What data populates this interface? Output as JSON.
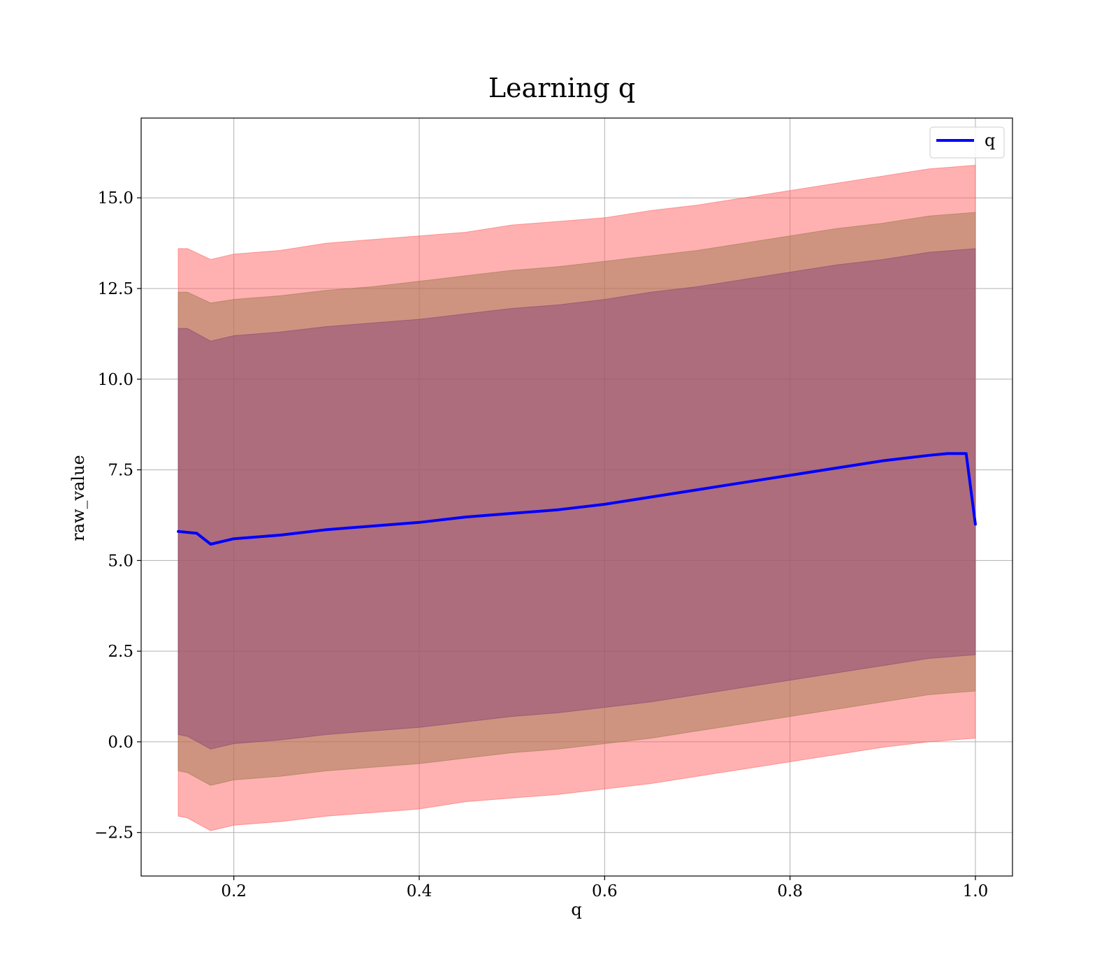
{
  "chart_data": {
    "type": "line",
    "title": "Learning q",
    "xlabel": "q",
    "ylabel": "raw_value",
    "xlim": [
      0.1,
      1.04
    ],
    "ylim": [
      -3.7,
      17.2
    ],
    "x_ticks": [
      0.2,
      0.4,
      0.6,
      0.8,
      1.0
    ],
    "x_tick_labels": [
      "0.2",
      "0.4",
      "0.6",
      "0.8",
      "1.0"
    ],
    "y_ticks": [
      -2.5,
      0.0,
      2.5,
      5.0,
      7.5,
      10.0,
      12.5,
      15.0
    ],
    "y_tick_labels": [
      "−2.5",
      "0.0",
      "2.5",
      "5.0",
      "7.5",
      "10.0",
      "12.5",
      "15.0"
    ],
    "grid": true,
    "legend_position": "top-right",
    "series": [
      {
        "name": "q",
        "color": "#0000ff",
        "x": [
          0.14,
          0.16,
          0.175,
          0.2,
          0.25,
          0.3,
          0.35,
          0.4,
          0.45,
          0.5,
          0.55,
          0.6,
          0.65,
          0.7,
          0.75,
          0.8,
          0.85,
          0.9,
          0.95,
          0.97,
          0.99,
          1.0
        ],
        "y": [
          5.8,
          5.75,
          5.45,
          5.6,
          5.7,
          5.85,
          5.95,
          6.05,
          6.2,
          6.3,
          6.4,
          6.55,
          6.75,
          6.95,
          7.15,
          7.35,
          7.55,
          7.75,
          7.9,
          7.95,
          7.95,
          6.0
        ]
      }
    ],
    "bands": [
      {
        "color": "#ff6464",
        "x": [
          0.14,
          0.15,
          0.175,
          0.2,
          0.25,
          0.3,
          0.35,
          0.4,
          0.45,
          0.5,
          0.55,
          0.6,
          0.65,
          0.7,
          0.75,
          0.8,
          0.85,
          0.9,
          0.95,
          1.0
        ],
        "upper": [
          13.6,
          13.6,
          13.3,
          13.45,
          13.55,
          13.75,
          13.85,
          13.95,
          14.05,
          14.25,
          14.35,
          14.45,
          14.65,
          14.8,
          15.0,
          15.2,
          15.4,
          15.6,
          15.8,
          15.9
        ],
        "lower": [
          -2.05,
          -2.1,
          -2.45,
          -2.3,
          -2.2,
          -2.05,
          -1.95,
          -1.85,
          -1.65,
          -1.55,
          -1.45,
          -1.3,
          -1.15,
          -0.95,
          -0.75,
          -0.55,
          -0.35,
          -0.15,
          0.0,
          0.1
        ]
      },
      {
        "color": "#a07850",
        "x": [
          0.14,
          0.15,
          0.175,
          0.2,
          0.25,
          0.3,
          0.35,
          0.4,
          0.45,
          0.5,
          0.55,
          0.6,
          0.65,
          0.7,
          0.75,
          0.8,
          0.85,
          0.9,
          0.95,
          1.0
        ],
        "upper": [
          12.4,
          12.4,
          12.1,
          12.2,
          12.3,
          12.45,
          12.55,
          12.7,
          12.85,
          13.0,
          13.1,
          13.25,
          13.4,
          13.55,
          13.75,
          13.95,
          14.15,
          14.3,
          14.5,
          14.6
        ],
        "lower": [
          -0.8,
          -0.85,
          -1.2,
          -1.05,
          -0.95,
          -0.8,
          -0.7,
          -0.6,
          -0.45,
          -0.3,
          -0.2,
          -0.05,
          0.1,
          0.3,
          0.5,
          0.7,
          0.9,
          1.1,
          1.3,
          1.4
        ]
      },
      {
        "color": "#8c4678",
        "x": [
          0.14,
          0.15,
          0.175,
          0.2,
          0.25,
          0.3,
          0.35,
          0.4,
          0.45,
          0.5,
          0.55,
          0.6,
          0.65,
          0.7,
          0.75,
          0.8,
          0.85,
          0.9,
          0.95,
          1.0
        ],
        "upper": [
          11.4,
          11.4,
          11.05,
          11.2,
          11.3,
          11.45,
          11.55,
          11.65,
          11.8,
          11.95,
          12.05,
          12.2,
          12.4,
          12.55,
          12.75,
          12.95,
          13.15,
          13.3,
          13.5,
          13.6
        ],
        "lower": [
          0.2,
          0.15,
          -0.2,
          -0.05,
          0.05,
          0.2,
          0.3,
          0.4,
          0.55,
          0.7,
          0.8,
          0.95,
          1.1,
          1.3,
          1.5,
          1.7,
          1.9,
          2.1,
          2.3,
          2.4
        ]
      }
    ]
  }
}
